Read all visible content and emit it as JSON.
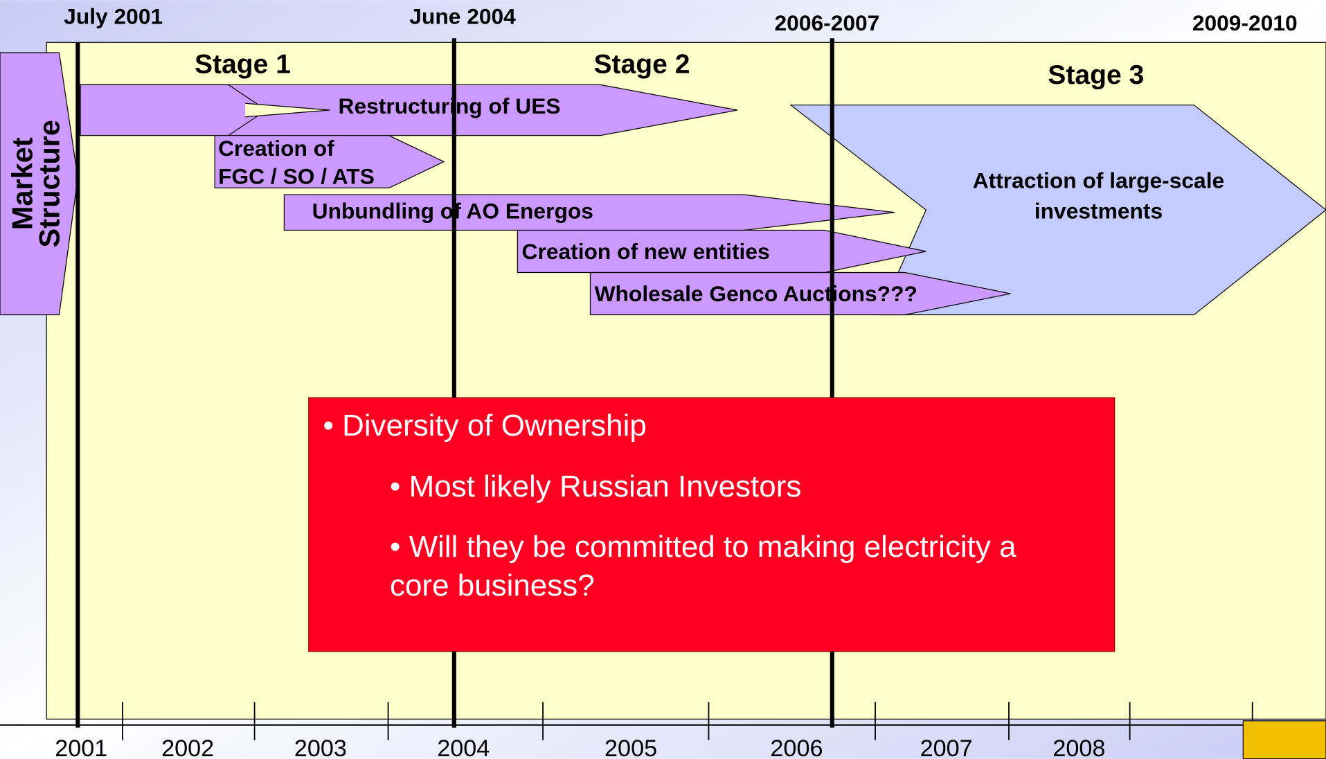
{
  "milestones": [
    "July 2001",
    "June 2004",
    "2006-2007",
    "2009-2010"
  ],
  "stages": [
    "Stage 1",
    "Stage 2",
    "Stage 3"
  ],
  "side_label": [
    "Market",
    "Structure"
  ],
  "arrows": [
    {
      "lines": [
        "Restructuring of UES"
      ]
    },
    {
      "lines": [
        "Creation of",
        "FGC / SO / ATS"
      ]
    },
    {
      "lines": [
        "Unbundling  of AO Energos"
      ]
    },
    {
      "lines": [
        "Creation of new entities"
      ]
    },
    {
      "lines": [
        "Wholesale Genco Auctions???"
      ]
    },
    {
      "lines": [
        "Attraction of large-scale",
        "investments"
      ]
    }
  ],
  "box": {
    "heading": "• Diversity of Ownership",
    "bullets": [
      [
        "• Most likely Russian Investors"
      ],
      [
        "• Will they be committed to making electricity a",
        "core business?"
      ]
    ]
  },
  "years": [
    "2001",
    "2002",
    "2003",
    "2004",
    "2005",
    "2006",
    "2007",
    "2008"
  ]
}
